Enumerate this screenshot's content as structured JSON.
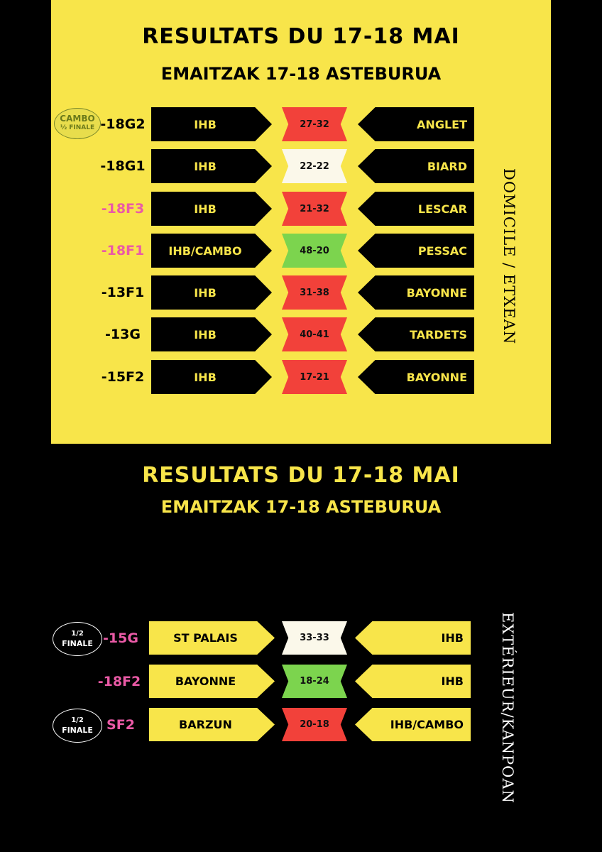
{
  "home_section": {
    "title": "RESULTATS DU 17-18 MAI",
    "subtitle": "EMAITZAK 17-18 ASTEBURUA",
    "side_label": "DOMICILE / ETXEAN",
    "badge": {
      "line1": "CAMBO",
      "line2": "½ FINALE"
    },
    "rows": [
      {
        "category": "-18G2",
        "home": "IHB",
        "score": "27-32",
        "away": "ANGLET",
        "result": "loss"
      },
      {
        "category": "-18G1",
        "home": "IHB",
        "score": "22-22",
        "away": "BIARD",
        "result": "draw"
      },
      {
        "category": "-18F3",
        "home": "IHB",
        "score": "21-32",
        "away": "LESCAR",
        "result": "loss"
      },
      {
        "category": "-18F1",
        "home": "IHB/CAMBO",
        "score": "48-20",
        "away": "PESSAC",
        "result": "win"
      },
      {
        "category": "-13F1",
        "home": "IHB",
        "score": "31-38",
        "away": "BAYONNE",
        "result": "loss"
      },
      {
        "category": "-13G",
        "home": "IHB",
        "score": "40-41",
        "away": "TARDETS",
        "result": "loss"
      },
      {
        "category": "-15F2",
        "home": "IHB",
        "score": "17-21",
        "away": "BAYONNE",
        "result": "loss"
      }
    ]
  },
  "away_section": {
    "title": "RESULTATS DU 17-18 MAI",
    "subtitle": "EMAITZAK 17-18 ASTEBURUA",
    "side_label": "EXTÉRIEUR/KANPOAN",
    "badges": [
      {
        "line1": "1/2",
        "line2": "FINALE"
      },
      {
        "line1": "1/2",
        "line2": "FINALE"
      }
    ],
    "rows": [
      {
        "category": "-15G",
        "home": "ST PALAIS",
        "score": "33-33",
        "away": "IHB",
        "result": "draw"
      },
      {
        "category": "-18F2",
        "home": "BAYONNE",
        "score": "18-24",
        "away": "IHB",
        "result": "win"
      },
      {
        "category": "SF2",
        "home": "BARZUN",
        "score": "20-18",
        "away": "IHB/CAMBO",
        "result": "loss"
      }
    ]
  },
  "colors": {
    "yellow": "#f8e54a",
    "black": "#000000",
    "loss_red": "#f2413a",
    "win_green": "#7cd44e",
    "draw_white": "#fbf8ea",
    "pink_category": "#ea5aa6"
  }
}
